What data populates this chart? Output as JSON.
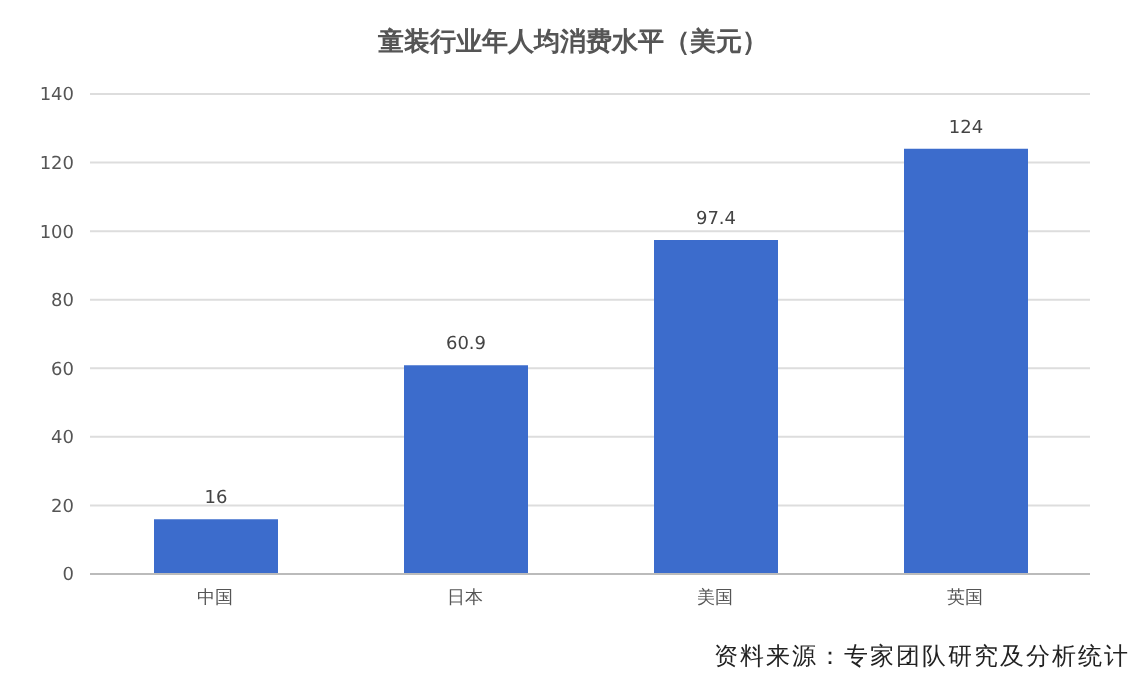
{
  "chart_data": {
    "type": "bar",
    "title": "童装行业年人均消费水平（美元）",
    "categories": [
      "中国",
      "日本",
      "美国",
      "英国"
    ],
    "values": [
      16,
      60.9,
      97.4,
      124
    ],
    "color": "#3c6ccc",
    "ylim": [
      0,
      140
    ],
    "yticks": [
      0,
      20,
      40,
      60,
      80,
      100,
      120,
      140
    ],
    "grid": "y",
    "data_labels": true,
    "annotations": [
      "资料来源：专家团队研究及分析统计"
    ]
  }
}
